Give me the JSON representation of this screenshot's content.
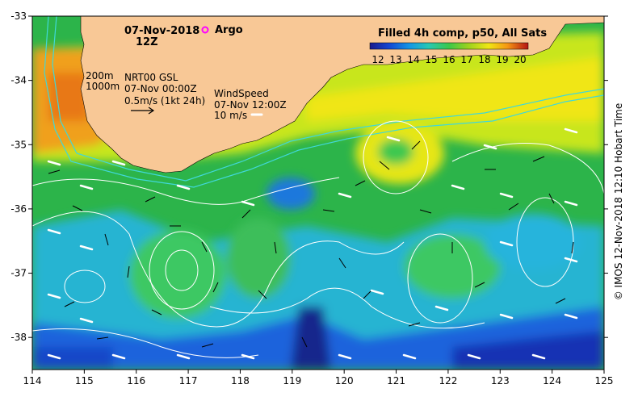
{
  "header": {
    "date": "07-Nov-2018",
    "hour": "12Z",
    "argo_label": "Argo"
  },
  "legend": {
    "title": "Filled 4h comp, p50, All Sats",
    "ticks": [
      "12",
      "13",
      "14",
      "15",
      "16",
      "17",
      "18",
      "19",
      "20"
    ],
    "range": [
      12,
      20
    ]
  },
  "depth_labels": [
    "200m",
    "1000m"
  ],
  "current_key": {
    "title": "NRT00 GSL",
    "time": "07-Nov 00:00Z",
    "scale": "0.5m/s (1kt 24h)"
  },
  "wind_key": {
    "title": "WindSpeed",
    "time": "07-Nov 12:00Z",
    "scale": "10 m/s"
  },
  "credit": "© IMOS 12-Nov-2018 12:10 Hobart Time",
  "axes": {
    "x_ticks": [
      "114",
      "115",
      "116",
      "117",
      "118",
      "119",
      "120",
      "121",
      "122",
      "123",
      "124",
      "125"
    ],
    "y_ticks": [
      "-33",
      "-34",
      "-35",
      "-36",
      "-37",
      "-38"
    ],
    "lon_range": [
      114,
      125
    ],
    "lat_range": [
      -38.5,
      -33
    ]
  },
  "colors": {
    "land": "#f8c896",
    "argo": "#ff00ff",
    "contour": "#ffffff",
    "depth_contour": "#40d8d8",
    "wind_arrow": "#ffffff",
    "current_arrow": "#000000"
  }
}
